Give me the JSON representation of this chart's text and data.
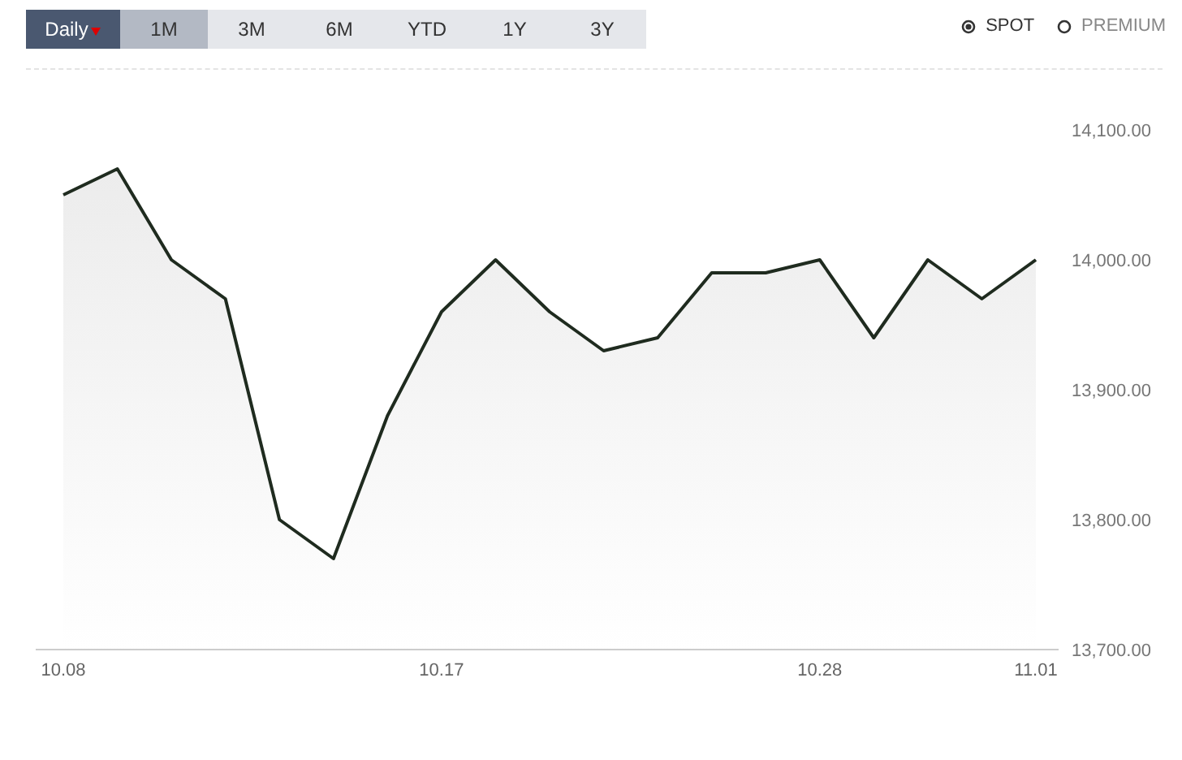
{
  "chart_data": {
    "type": "area",
    "categories": [
      "10.08",
      null,
      null,
      null,
      null,
      null,
      null,
      "10.17",
      null,
      null,
      null,
      null,
      null,
      null,
      "10.28",
      null,
      null,
      null,
      "11.01"
    ],
    "series": [
      {
        "color": "#1f2b1f",
        "values": [
          14050,
          14070,
          14000,
          13970,
          13800,
          13770,
          13880,
          13960,
          14000,
          13960,
          13930,
          13940,
          13990,
          13990,
          14000,
          13940,
          14000,
          13970,
          14000
        ]
      }
    ],
    "ylim": [
      13700,
      14100
    ],
    "yticks": [
      {
        "value": 13700,
        "label": "13,700.00"
      },
      {
        "value": 13800,
        "label": "13,800.00"
      },
      {
        "value": 13900,
        "label": "13,900.00"
      },
      {
        "value": 14000,
        "label": "14,000.00"
      },
      {
        "value": 14100,
        "label": "14,100.00"
      }
    ],
    "grid": false,
    "annotations": [
      "Daily",
      "1M",
      "3M",
      "6M",
      "YTD",
      "1Y",
      "3Y",
      "SPOT",
      "PREMIUM"
    ]
  }
}
